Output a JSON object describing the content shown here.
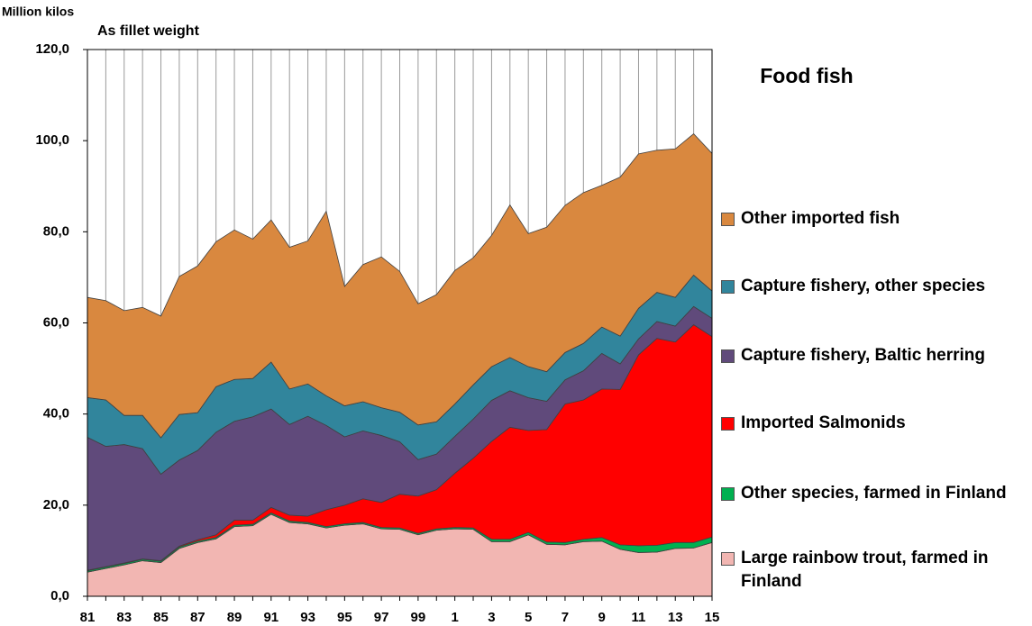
{
  "chart_data": {
    "type": "stacked_area",
    "title": "Food fish",
    "y_label": "Million kilos",
    "subtitle": "As fillet weight",
    "categories": [
      "81",
      null,
      "83",
      null,
      "85",
      null,
      "87",
      null,
      "89",
      null,
      "91",
      null,
      "93",
      null,
      "95",
      null,
      "97",
      null,
      "99",
      null,
      "1",
      null,
      "3",
      null,
      "5",
      null,
      "7",
      null,
      "9",
      null,
      "11",
      null,
      "13",
      null,
      "15"
    ],
    "ylim": [
      0,
      120
    ],
    "yticks": [
      {
        "value": 0,
        "label": "0,0"
      },
      {
        "value": 20,
        "label": "20,0"
      },
      {
        "value": 40,
        "label": "40,0"
      },
      {
        "value": 60,
        "label": "60,0"
      },
      {
        "value": 80,
        "label": "80,0"
      },
      {
        "value": 100,
        "label": "100,0"
      },
      {
        "value": 120,
        "label": "120,0"
      }
    ],
    "grid": "x",
    "series": [
      {
        "name": "Large rainbow trout, farmed in Finland",
        "color": "#f2b6b2",
        "values": [
          5.3,
          6.1,
          6.9,
          7.8,
          7.4,
          10.5,
          11.8,
          12.6,
          15.3,
          15.5,
          18,
          16.2,
          15.9,
          15,
          15.6,
          15.9,
          14.8,
          14.7,
          13.5,
          14.5,
          14.8,
          14.7,
          12,
          12,
          13.5,
          11.4,
          11.3,
          12,
          12.1,
          10.3,
          9.6,
          9.7,
          10.5,
          10.6,
          11.8
        ]
      },
      {
        "name": "Other species, farmed in Finland",
        "color": "#00b050",
        "values": [
          0.3,
          0.3,
          0.3,
          0.3,
          0.3,
          0.3,
          0.3,
          0.3,
          0.3,
          0.3,
          0.3,
          0.3,
          0.3,
          0.3,
          0.3,
          0.3,
          0.3,
          0.3,
          0.3,
          0.3,
          0.3,
          0.3,
          0.5,
          0.5,
          0.5,
          0.5,
          0.5,
          0.5,
          0.8,
          1.0,
          1.5,
          1.5,
          1.3,
          1.2,
          1.2
        ]
      },
      {
        "name": "Imported Salmonids",
        "color": "#ff0000",
        "values": [
          0.1,
          0.1,
          0.1,
          0.1,
          0.1,
          0.2,
          0.3,
          0.6,
          1.1,
          0.9,
          1.2,
          1.3,
          1.4,
          3.7,
          4.1,
          5.2,
          5.5,
          7.4,
          8.2,
          8.6,
          11.9,
          15.3,
          21.5,
          24.6,
          22.4,
          24.7,
          30.4,
          30.6,
          32.6,
          34.1,
          41.9,
          45.4,
          44,
          47.8,
          44
        ]
      },
      {
        "name": "Capture fishery, Baltic herring",
        "color": "#604a7b",
        "values": [
          29.2,
          26.4,
          26,
          24.2,
          19,
          18.9,
          19.6,
          22.5,
          21.7,
          22.7,
          21.6,
          19.9,
          21.9,
          18.5,
          15,
          14.9,
          14.7,
          11.5,
          8,
          7.8,
          8.1,
          8.6,
          9,
          8,
          7.2,
          6.2,
          5.3,
          6.4,
          7.8,
          5.6,
          3.5,
          3.7,
          3.5,
          4,
          4
        ]
      },
      {
        "name": "Capture fishery, other species",
        "color": "#31859c",
        "values": [
          8.7,
          10.2,
          6.4,
          7.3,
          8,
          10,
          8.3,
          10,
          9.2,
          8.4,
          10.3,
          7.8,
          7.1,
          6.5,
          6.8,
          6.4,
          6.1,
          6.5,
          7.6,
          7.1,
          7.1,
          7.5,
          7.4,
          7.3,
          6.8,
          6.5,
          6,
          6,
          5.8,
          6.1,
          6.7,
          6.4,
          6.3,
          6.9,
          6
        ]
      },
      {
        "name": "Other imported fish",
        "color": "#d9883f",
        "values": [
          22,
          21.8,
          23,
          23.7,
          26.7,
          30.3,
          32.2,
          31.8,
          32.8,
          30.6,
          31.2,
          31.1,
          31.4,
          40.5,
          26.2,
          30.1,
          33.1,
          30.9,
          26.6,
          27.9,
          29.3,
          27.9,
          28.8,
          33.5,
          29.2,
          31.7,
          32.3,
          33.1,
          31.1,
          34.9,
          33.9,
          31.2,
          32.6,
          31,
          30.2
        ]
      }
    ]
  }
}
